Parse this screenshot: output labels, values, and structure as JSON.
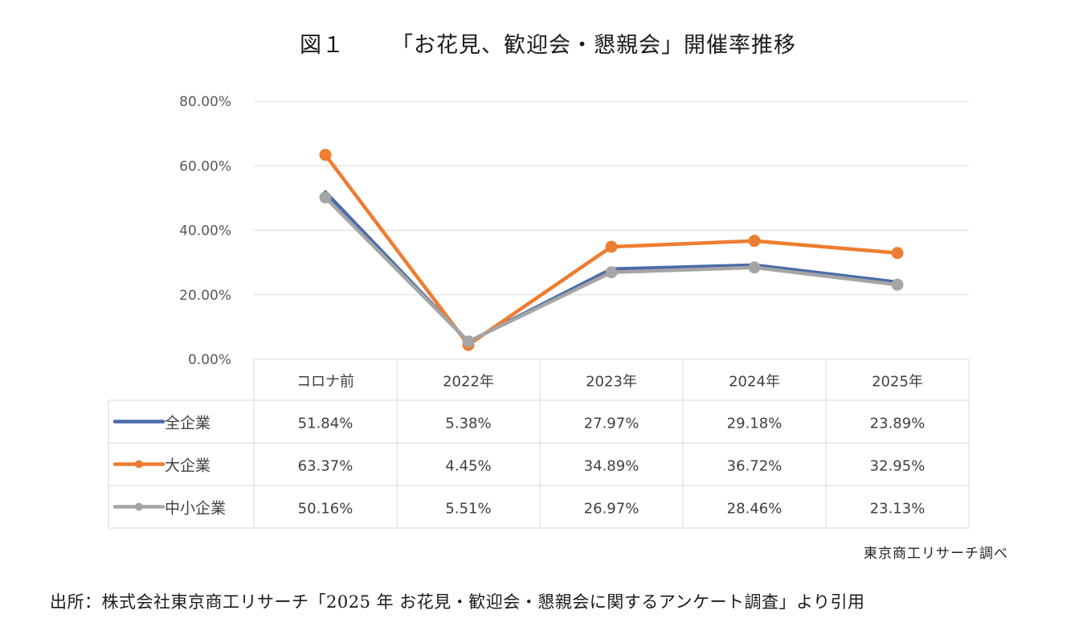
{
  "figure": {
    "label": "図１",
    "caption": "「お花見、歓迎会・懇親会」開催率推移"
  },
  "chart_data": {
    "type": "line",
    "categories": [
      "コロナ前",
      "2022年",
      "2023年",
      "2024年",
      "2025年"
    ],
    "series": [
      {
        "name": "全企業",
        "values": [
          51.84,
          5.38,
          27.97,
          29.18,
          23.89
        ],
        "labels": [
          "51.84%",
          "5.38%",
          "27.97%",
          "29.18%",
          "23.89%"
        ],
        "color": "#4a6baa",
        "marker": "none"
      },
      {
        "name": "大企業",
        "values": [
          63.37,
          4.45,
          34.89,
          36.72,
          32.95
        ],
        "labels": [
          "63.37%",
          "4.45%",
          "34.89%",
          "36.72%",
          "32.95%"
        ],
        "color": "#ed7d31",
        "marker": "circle"
      },
      {
        "name": "中小企業",
        "values": [
          50.16,
          5.51,
          26.97,
          28.46,
          23.13
        ],
        "labels": [
          "50.16%",
          "5.51%",
          "26.97%",
          "28.46%",
          "23.13%"
        ],
        "color": "#a5a5a5",
        "marker": "circle"
      }
    ],
    "y_ticks": [
      "0.00%",
      "20.00%",
      "40.00%",
      "60.00%",
      "80.00%"
    ],
    "ylim": [
      0,
      80
    ],
    "grid": true,
    "legend": "data-table"
  },
  "attribution": "東京商工リサーチ調べ",
  "source": "出所：株式会社東京商工リサーチ「2025 年 お花見・歓迎会・懇親会に関するアンケート調査」より引用"
}
